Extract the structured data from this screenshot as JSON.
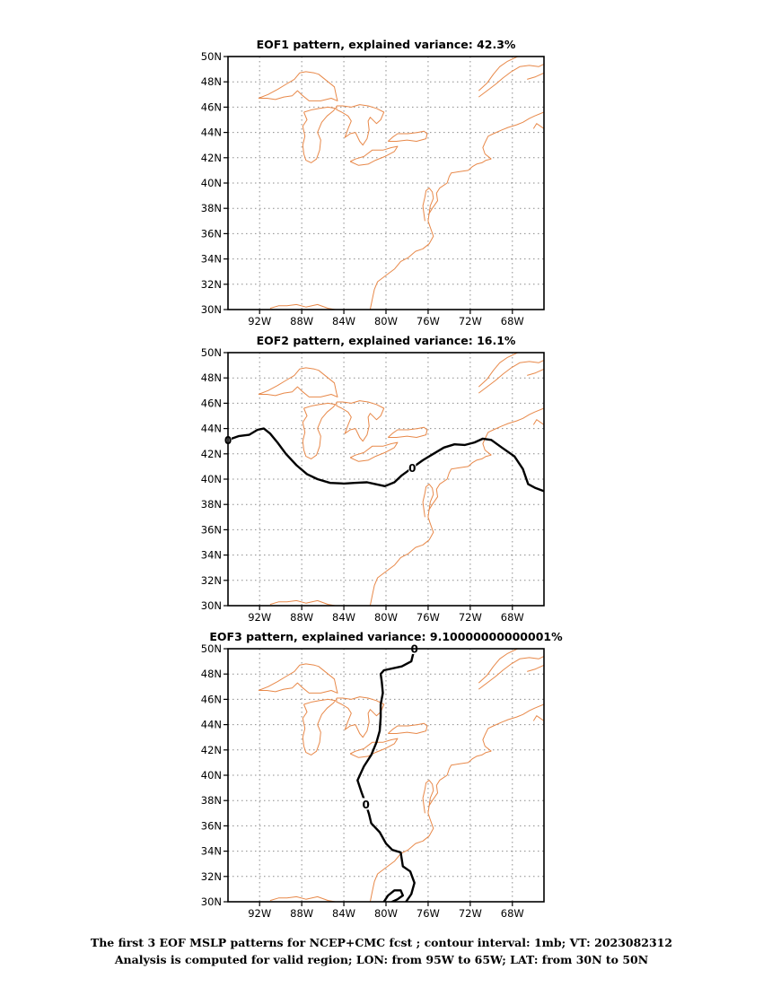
{
  "panels": [
    {
      "title": "EOF1 pattern, explained variance: 42.3%",
      "contours": []
    },
    {
      "title": "EOF2 pattern, explained variance: 16.1%",
      "contours": [
        {
          "level": 0,
          "label": "0",
          "points": [
            [
              -95.0,
              43.1
            ],
            [
              -94.0,
              43.4
            ],
            [
              -93.0,
              43.5
            ],
            [
              -92.2,
              43.9
            ],
            [
              -91.6,
              44.0
            ],
            [
              -91.0,
              43.6
            ],
            [
              -90.3,
              42.9
            ],
            [
              -89.5,
              42.0
            ],
            [
              -88.5,
              41.1
            ],
            [
              -87.5,
              40.4
            ],
            [
              -86.5,
              40.0
            ],
            [
              -85.3,
              39.7
            ],
            [
              -84.0,
              39.65
            ],
            [
              -83.0,
              39.7
            ],
            [
              -81.8,
              39.75
            ],
            [
              -81.0,
              39.6
            ],
            [
              -80.1,
              39.45
            ],
            [
              -79.2,
              39.75
            ],
            [
              -78.5,
              40.3
            ],
            [
              -77.5,
              40.9
            ],
            [
              -76.5,
              41.5
            ],
            [
              -75.5,
              42.0
            ],
            [
              -74.5,
              42.5
            ],
            [
              -73.5,
              42.75
            ],
            [
              -72.5,
              42.7
            ],
            [
              -71.6,
              42.9
            ],
            [
              -70.8,
              43.2
            ],
            [
              -70.0,
              43.1
            ],
            [
              -69.0,
              42.5
            ],
            [
              -67.8,
              41.8
            ],
            [
              -67.0,
              40.8
            ],
            [
              -66.5,
              39.6
            ],
            [
              -65.8,
              39.3
            ],
            [
              -65.0,
              39.05
            ]
          ]
        }
      ]
    },
    {
      "title": "EOF3 pattern, explained variance: 9.10000000000001%",
      "contours": [
        {
          "level": 0,
          "label": "0",
          "points": [
            [
              -77.3,
              50.0
            ],
            [
              -77.6,
              49.0
            ],
            [
              -78.5,
              48.6
            ],
            [
              -80.2,
              48.3
            ],
            [
              -80.5,
              48.0
            ],
            [
              -80.4,
              47.4
            ],
            [
              -80.3,
              46.5
            ],
            [
              -80.5,
              45.6
            ],
            [
              -80.5,
              44.6
            ],
            [
              -80.6,
              43.5
            ],
            [
              -80.9,
              42.6
            ],
            [
              -81.4,
              41.6
            ],
            [
              -82.1,
              40.7
            ],
            [
              -82.7,
              39.6
            ],
            [
              -82.3,
              38.6
            ],
            [
              -81.9,
              37.7
            ],
            [
              -81.6,
              36.9
            ],
            [
              -81.4,
              36.2
            ],
            [
              -80.6,
              35.5
            ],
            [
              -80.0,
              34.6
            ],
            [
              -79.4,
              34.1
            ],
            [
              -78.6,
              33.9
            ],
            [
              -78.4,
              32.8
            ],
            [
              -77.7,
              32.4
            ],
            [
              -77.3,
              31.5
            ],
            [
              -77.6,
              30.6
            ],
            [
              -78.1,
              30.0
            ]
          ]
        },
        {
          "level": 0,
          "label": "",
          "points": [
            [
              -80.2,
              30.0
            ],
            [
              -79.8,
              30.5
            ],
            [
              -79.2,
              30.9
            ],
            [
              -78.6,
              30.9
            ],
            [
              -78.4,
              30.5
            ],
            [
              -78.9,
              30.2
            ],
            [
              -79.4,
              30.0
            ]
          ]
        }
      ]
    }
  ],
  "map": {
    "lon_range": [
      -95,
      -65
    ],
    "lat_range": [
      30,
      50
    ],
    "lon_ticks": [
      "92W",
      "88W",
      "84W",
      "80W",
      "76W",
      "72W",
      "68W"
    ],
    "lat_ticks": [
      "30N",
      "32N",
      "34N",
      "36N",
      "38N",
      "40N",
      "42N",
      "44N",
      "46N",
      "48N",
      "50N"
    ],
    "coastline_color": "#e8894a",
    "contour_color": "#000000",
    "grid": "dotted"
  },
  "caption": {
    "line1": "The first 3 EOF MSLP patterns for NCEP+CMC fcst ; contour interval: 1mb; VT: 2023082312",
    "line2": "Analysis is computed for valid region; LON: from 95W to 65W; LAT: from 30N to 50N"
  }
}
